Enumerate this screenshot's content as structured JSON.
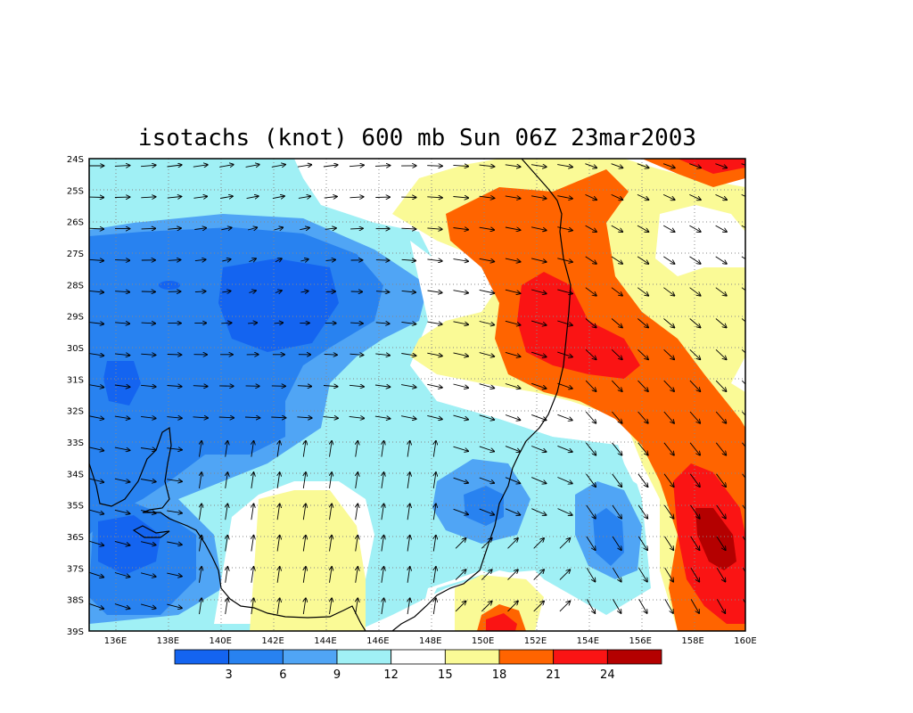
{
  "title": "isotachs (knot) 600 mb Sun 06Z 23mar2003",
  "map": {
    "lon_labels": [
      "136E",
      "138E",
      "140E",
      "142E",
      "144E",
      "146E",
      "148E",
      "150E",
      "152E",
      "154E",
      "156E",
      "158E",
      "160E"
    ],
    "lat_labels": [
      "24S",
      "25S",
      "26S",
      "27S",
      "28S",
      "29S",
      "30S",
      "31S",
      "32S",
      "33S",
      "34S",
      "35S",
      "36S",
      "37S",
      "38S",
      "39S"
    ],
    "lon_range": [
      135,
      160
    ],
    "lat_range": [
      -24,
      -39
    ],
    "gridlines": "dotted",
    "coastline_color": "#000000",
    "wind_vectors": true
  },
  "colorbar": {
    "labels": [
      "3",
      "6",
      "9",
      "12",
      "15",
      "18",
      "21",
      "24"
    ],
    "colors": [
      "#1464f0",
      "#2882f0",
      "#50a5f5",
      "#a0f0f5",
      "#ffffff",
      "#fafa96",
      "#ff6400",
      "#fa1414",
      "#b40000"
    ]
  }
}
